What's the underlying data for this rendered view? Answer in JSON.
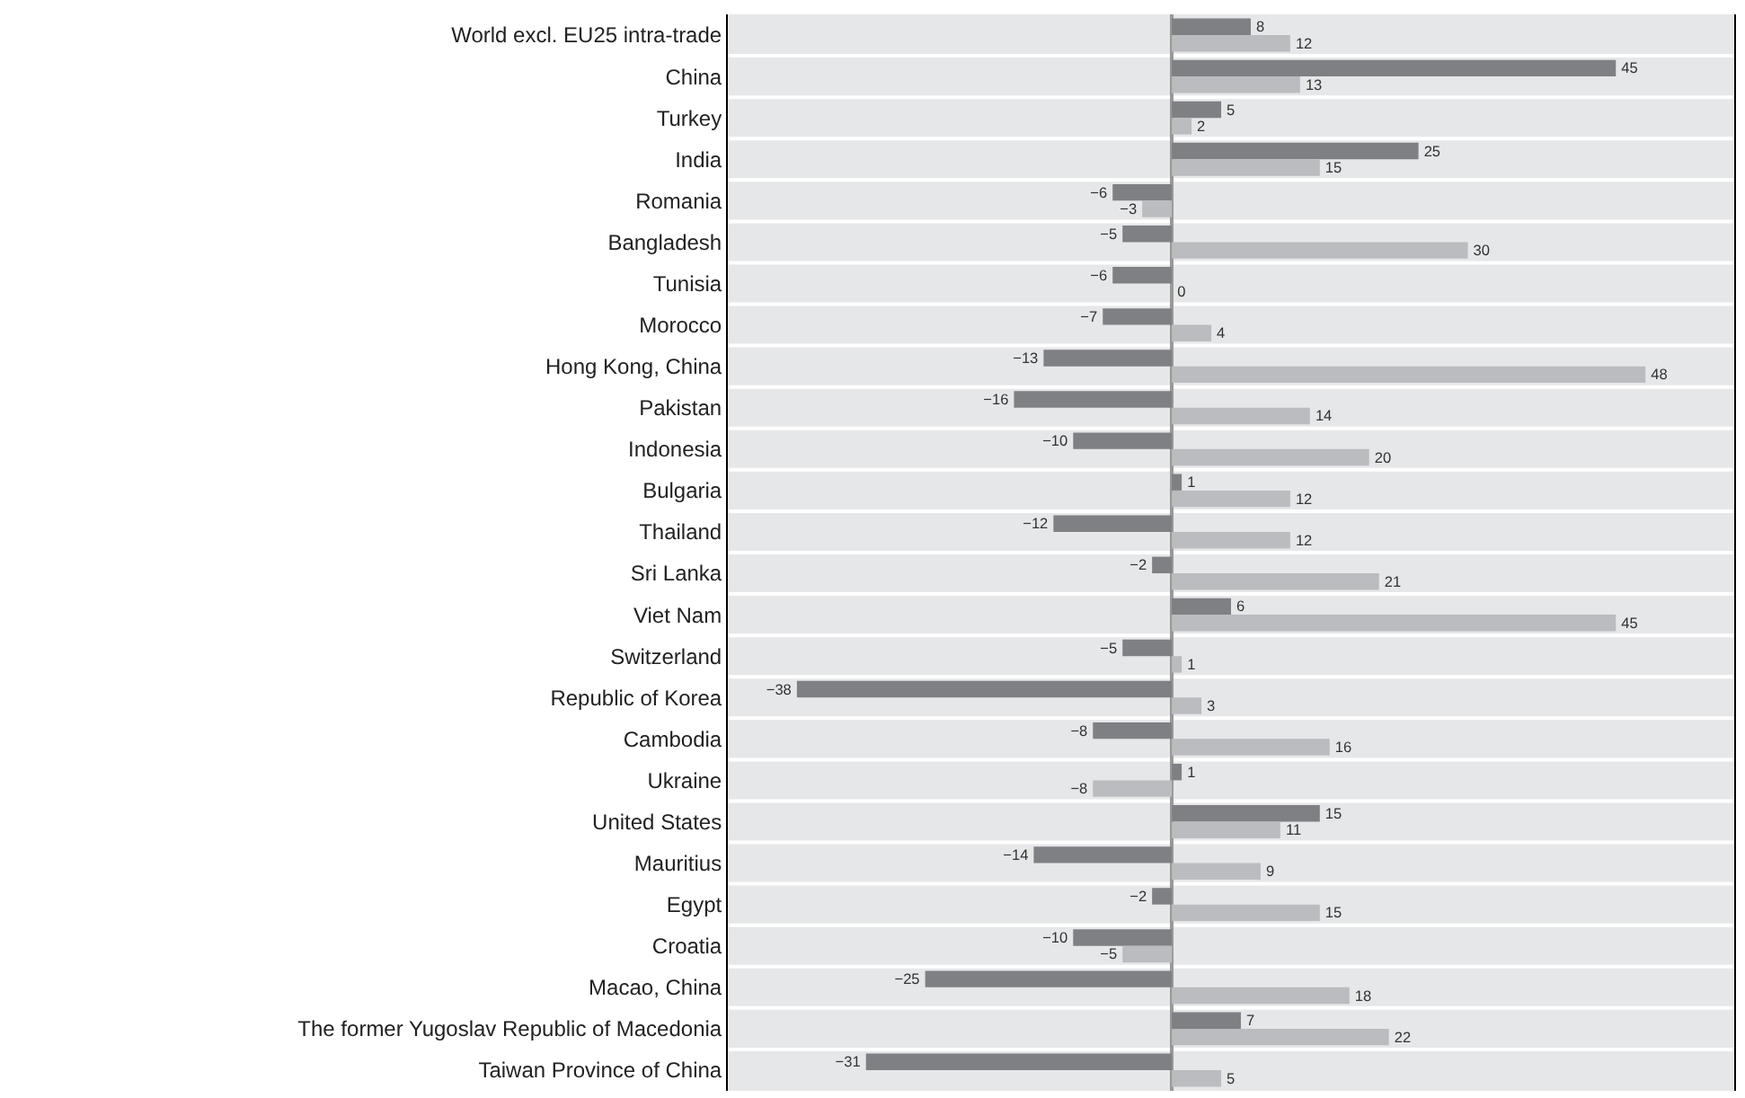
{
  "chart_data": {
    "type": "bar",
    "orientation": "horizontal",
    "categories": [
      "World excl. EU25 intra-trade",
      "China",
      "Turkey",
      "India",
      "Romania",
      "Bangladesh",
      "Tunisia",
      "Morocco",
      "Hong Kong, China",
      "Pakistan",
      "Indonesia",
      "Bulgaria",
      "Thailand",
      "Sri Lanka",
      "Viet Nam",
      "Switzerland",
      "Republic of Korea",
      "Cambodia",
      "Ukraine",
      "United States",
      "Mauritius",
      "Egypt",
      "Croatia",
      "Macao, China",
      "The former Yugoslav Republic of Macedonia",
      "Taiwan Province of China"
    ],
    "series": [
      {
        "color": "#7f8084",
        "values": [
          8,
          45,
          5,
          25,
          -6,
          -5,
          -6,
          -7,
          -13,
          -16,
          -10,
          1,
          -12,
          -2,
          6,
          -5,
          -38,
          -8,
          1,
          15,
          -14,
          -2,
          -10,
          -25,
          7,
          -31
        ]
      },
      {
        "color": "#bbbcc0",
        "values": [
          12,
          13,
          2,
          15,
          -3,
          30,
          0,
          4,
          48,
          14,
          20,
          12,
          12,
          21,
          45,
          1,
          3,
          16,
          -8,
          11,
          9,
          15,
          -5,
          18,
          22,
          5
        ]
      }
    ],
    "xlim": [
      -45,
      57
    ],
    "data_labels": true,
    "tick_labels": "y",
    "grid": "y"
  }
}
